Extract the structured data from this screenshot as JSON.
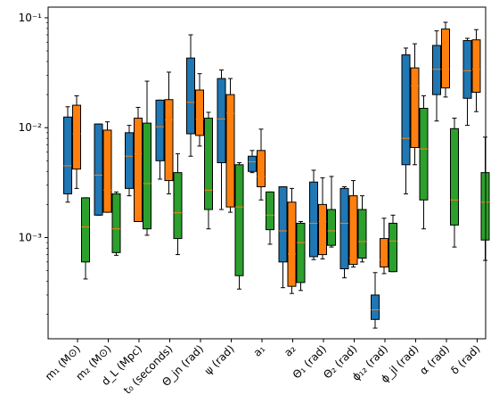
{
  "chart_data": {
    "type": "box",
    "title": "",
    "xlabel": "",
    "ylabel": "",
    "yscale": "log",
    "ylim": [
      0.00012,
      0.125
    ],
    "y_tick_labels": [
      "10⁻³",
      "10⁻²",
      "10⁻¹"
    ],
    "y_tick_values": [
      0.001,
      0.01,
      0.1
    ],
    "categories": [
      "m₁ (M⊙)",
      "m₂ (M⊙)",
      "d_L (Mpc)",
      "t₀ (seconds)",
      "Θ_jn (rad)",
      "ψ (rad)",
      "a₁",
      "a₂",
      "Θ₁ (rad)",
      "Θ₂ (rad)",
      "ϕ₁₂ (rad)",
      "ϕ_jl (rad)",
      "α (rad)",
      "δ (rad)"
    ],
    "series": [
      {
        "color": "#1f77b4",
        "boxes": [
          {
            "wlo": 0.0021,
            "q1": 0.0025,
            "med": 0.0045,
            "q3": 0.0125,
            "whi": 0.0155
          },
          {
            "wlo": 0.0016,
            "q1": 0.0016,
            "med": 0.0037,
            "q3": 0.0108,
            "whi": 0.0108
          },
          {
            "wlo": 0.0024,
            "q1": 0.0028,
            "med": 0.0055,
            "q3": 0.009,
            "whi": 0.0105
          },
          {
            "wlo": 0.0034,
            "q1": 0.005,
            "med": 0.0102,
            "q3": 0.0178,
            "whi": 0.0178
          },
          {
            "wlo": 0.0055,
            "q1": 0.0088,
            "med": 0.017,
            "q3": 0.043,
            "whi": 0.07
          },
          {
            "wlo": 0.0018,
            "q1": 0.0048,
            "med": 0.012,
            "q3": 0.028,
            "whi": 0.0335
          },
          {
            "wlo": 0.0039,
            "q1": 0.004,
            "med": 0.0049,
            "q3": 0.0055,
            "whi": 0.0062
          },
          {
            "wlo": 0.00035,
            "q1": 0.0006,
            "med": 0.00115,
            "q3": 0.0029,
            "whi": 0.0029
          },
          {
            "wlo": 0.00063,
            "q1": 0.00067,
            "med": 0.00135,
            "q3": 0.0032,
            "whi": 0.0041
          },
          {
            "wlo": 0.00043,
            "q1": 0.00052,
            "med": 0.00135,
            "q3": 0.0028,
            "whi": 0.0029
          },
          {
            "wlo": 0.00015,
            "q1": 0.00018,
            "med": 0.00022,
            "q3": 0.0003,
            "whi": 0.00048
          },
          {
            "wlo": 0.0025,
            "q1": 0.0046,
            "med": 0.008,
            "q3": 0.046,
            "whi": 0.053
          },
          {
            "wlo": 0.0115,
            "q1": 0.02,
            "med": 0.034,
            "q3": 0.056,
            "whi": 0.076
          },
          {
            "wlo": 0.0105,
            "q1": 0.0185,
            "med": 0.033,
            "q3": 0.062,
            "whi": 0.065
          }
        ]
      },
      {
        "color": "#ff7f0e",
        "boxes": [
          {
            "wlo": 0.0028,
            "q1": 0.0042,
            "med": 0.0088,
            "q3": 0.016,
            "whi": 0.0195
          },
          {
            "wlo": 0.0017,
            "q1": 0.0017,
            "med": 0.0027,
            "q3": 0.0095,
            "whi": 0.0113
          },
          {
            "wlo": 0.0014,
            "q1": 0.0014,
            "med": 0.0058,
            "q3": 0.0122,
            "whi": 0.0153
          },
          {
            "wlo": 0.0025,
            "q1": 0.0033,
            "med": 0.0118,
            "q3": 0.018,
            "whi": 0.032
          },
          {
            "wlo": 0.0068,
            "q1": 0.0085,
            "med": 0.012,
            "q3": 0.022,
            "whi": 0.031
          },
          {
            "wlo": 0.0017,
            "q1": 0.0019,
            "med": 0.0135,
            "q3": 0.02,
            "whi": 0.028
          },
          {
            "wlo": 0.0022,
            "q1": 0.0029,
            "med": 0.0036,
            "q3": 0.0062,
            "whi": 0.0097
          },
          {
            "wlo": 0.00031,
            "q1": 0.00036,
            "med": 0.00071,
            "q3": 0.0021,
            "whi": 0.0028
          },
          {
            "wlo": 0.00064,
            "q1": 0.0007,
            "med": 0.0014,
            "q3": 0.002,
            "whi": 0.0035
          },
          {
            "wlo": 0.00054,
            "q1": 0.00057,
            "med": 0.00065,
            "q3": 0.0024,
            "whi": 0.0033
          },
          {
            "wlo": 0.00047,
            "q1": 0.00054,
            "med": 0.00063,
            "q3": 0.00098,
            "whi": 0.0015
          },
          {
            "wlo": 0.0046,
            "q1": 0.0066,
            "med": 0.024,
            "q3": 0.035,
            "whi": 0.058
          },
          {
            "wlo": 0.019,
            "q1": 0.023,
            "med": 0.034,
            "q3": 0.079,
            "whi": 0.091
          },
          {
            "wlo": 0.014,
            "q1": 0.021,
            "med": 0.034,
            "q3": 0.063,
            "whi": 0.078
          }
        ]
      },
      {
        "color": "#2ca02c",
        "boxes": [
          {
            "wlo": 0.00042,
            "q1": 0.0006,
            "med": 0.00125,
            "q3": 0.0023,
            "whi": 0.0023
          },
          {
            "wlo": 0.00069,
            "q1": 0.00073,
            "med": 0.0012,
            "q3": 0.0025,
            "whi": 0.0026
          },
          {
            "wlo": 0.00105,
            "q1": 0.0012,
            "med": 0.0031,
            "q3": 0.011,
            "whi": 0.0265
          },
          {
            "wlo": 0.0007,
            "q1": 0.00098,
            "med": 0.00168,
            "q3": 0.0039,
            "whi": 0.0058
          },
          {
            "wlo": 0.0012,
            "q1": 0.0018,
            "med": 0.0027,
            "q3": 0.0122,
            "whi": 0.0138
          },
          {
            "wlo": 0.00034,
            "q1": 0.00045,
            "med": 0.0019,
            "q3": 0.0046,
            "whi": 0.0048
          },
          {
            "wlo": 0.00087,
            "q1": 0.00118,
            "med": 0.0016,
            "q3": 0.0026,
            "whi": 0.0026
          },
          {
            "wlo": 0.00033,
            "q1": 0.00039,
            "med": 0.0009,
            "q3": 0.00135,
            "whi": 0.0014
          },
          {
            "wlo": 0.00082,
            "q1": 0.00085,
            "med": 0.00115,
            "q3": 0.0018,
            "whi": 0.0036
          },
          {
            "wlo": 0.0006,
            "q1": 0.00065,
            "med": 0.00092,
            "q3": 0.0018,
            "whi": 0.0024
          },
          {
            "wlo": 0.00049,
            "q1": 0.00049,
            "med": 0.00093,
            "q3": 0.00135,
            "whi": 0.0016
          },
          {
            "wlo": 0.0012,
            "q1": 0.0022,
            "med": 0.0064,
            "q3": 0.015,
            "whi": 0.0195
          },
          {
            "wlo": 0.00082,
            "q1": 0.0013,
            "med": 0.0022,
            "q3": 0.0098,
            "whi": 0.0122
          },
          {
            "wlo": 0.00062,
            "q1": 0.00095,
            "med": 0.0021,
            "q3": 0.0039,
            "whi": 0.0082
          }
        ]
      }
    ],
    "median_color": "#ff7f0e",
    "grid": false,
    "legend": "none"
  }
}
